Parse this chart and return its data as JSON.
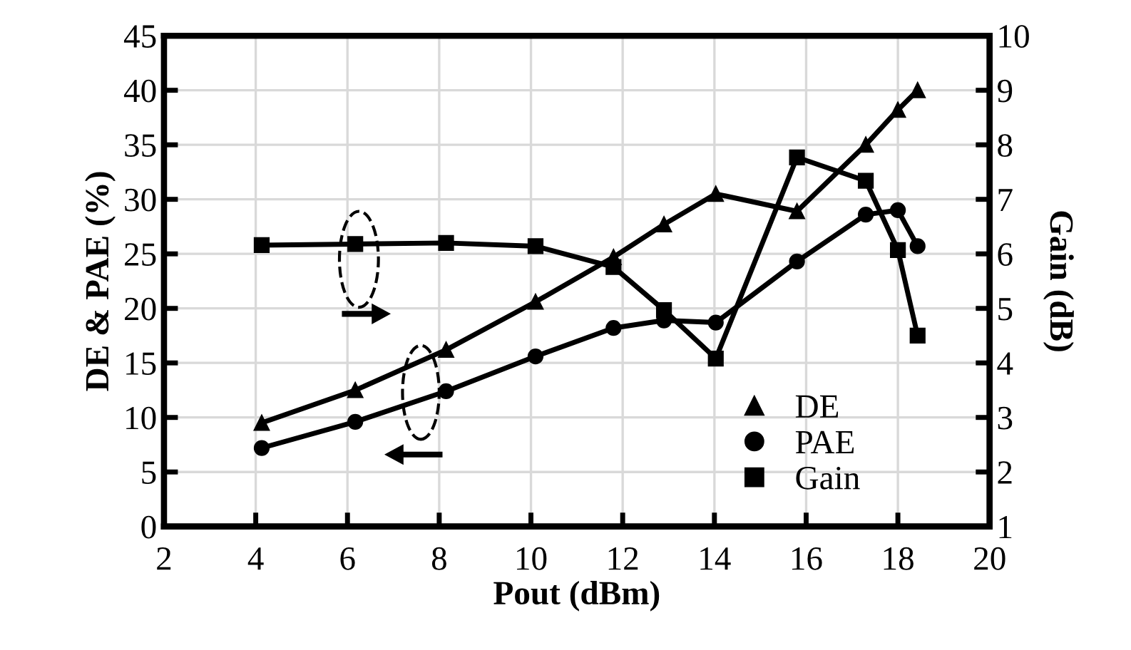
{
  "chart_data": {
    "type": "line",
    "xlabel": "Pout (dBm)",
    "ylabel": "DE & PAE (%)",
    "y2label": "Gain (dB)",
    "xlim": [
      2,
      20
    ],
    "xticks": [
      2,
      4,
      6,
      8,
      10,
      12,
      14,
      16,
      18,
      20
    ],
    "ylim": [
      0,
      45
    ],
    "yticks": [
      0,
      5,
      10,
      15,
      20,
      25,
      30,
      35,
      40,
      45
    ],
    "y2lim": [
      1,
      10
    ],
    "y2ticks": [
      1,
      2,
      3,
      4,
      5,
      6,
      7,
      8,
      9,
      10
    ],
    "grid": true,
    "legend": "bottom right",
    "line_style": "solid",
    "x": [
      4.13,
      6.17,
      8.15,
      10.1,
      11.8,
      12.9,
      14.03,
      15.8,
      17.3,
      18.0,
      18.43
    ],
    "series": [
      {
        "name": "DE",
        "color": "#000000",
        "marker": "triangle",
        "values": [
          9.5,
          12.5,
          16.2,
          20.6,
          24.7,
          27.7,
          30.5,
          28.9,
          35.0,
          38.2,
          40.0
        ]
      },
      {
        "name": "PAE",
        "color": "#000000",
        "marker": "circle",
        "values": [
          7.2,
          9.6,
          12.4,
          15.6,
          18.2,
          18.9,
          18.7,
          24.3,
          28.6,
          29.0,
          25.7
        ]
      },
      {
        "name": "Gain",
        "color": "#000000",
        "marker": "square",
        "axis": "y2",
        "values": [
          6.16,
          6.18,
          6.2,
          6.14,
          5.76,
          4.97,
          4.08,
          7.77,
          7.34,
          6.07,
          4.5
        ]
      }
    ]
  }
}
